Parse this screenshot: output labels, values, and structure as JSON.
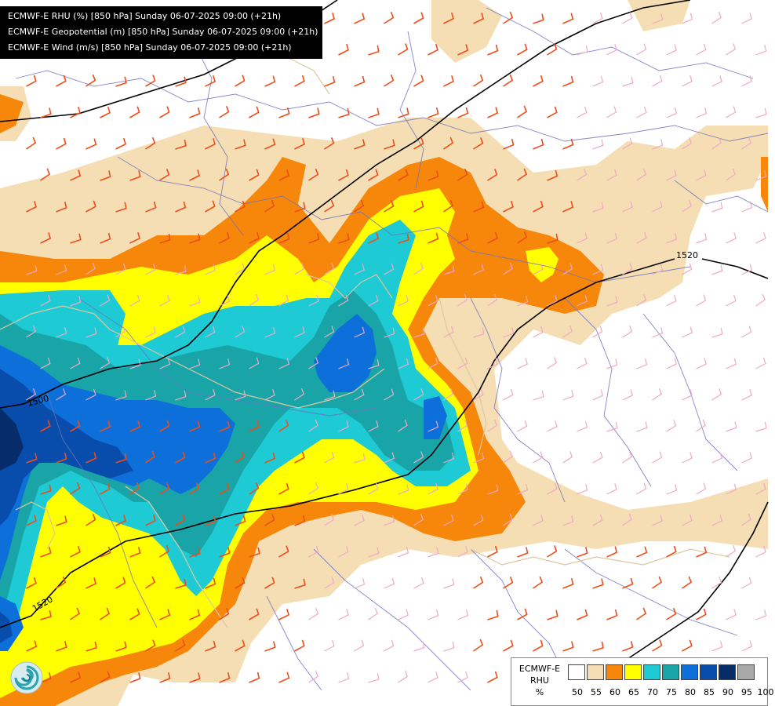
{
  "header": {
    "lines": [
      "ECMWF-E RHU (%) [850 hPa] Sunday 06-07-2025 09:00 (+21h)",
      "ECMWF-E Geopotential (m) [850 hPa] Sunday 06-07-2025 09:00 (+21h)",
      "ECMWF-E Wind (m/s) [850 hPa] Sunday 06-07-2025 09:00 (+21h)"
    ]
  },
  "contour_labels": [
    "1500",
    "1520",
    "1520"
  ],
  "legend": {
    "title_lines": [
      "ECMWF-E",
      "RHU",
      "%"
    ],
    "ticks": [
      "50",
      "55",
      "60",
      "65",
      "70",
      "75",
      "80",
      "85",
      "90",
      "95",
      "100"
    ],
    "colors": [
      "#ffffff",
      "#f5deb3",
      "#f7870b",
      "#ffff00",
      "#1ecad3",
      "#19a5a8",
      "#0d6fd9",
      "#084dab",
      "#072c6a",
      "#a8a8a8",
      "#5d5d5d"
    ]
  },
  "colors": {
    "wind_orange": "#ee4d1a",
    "wind_pink": "#f0a8c8",
    "borders": "#7070c0",
    "isohypse": "#000000"
  },
  "logo_icon": "ecmwf-swirl-icon"
}
